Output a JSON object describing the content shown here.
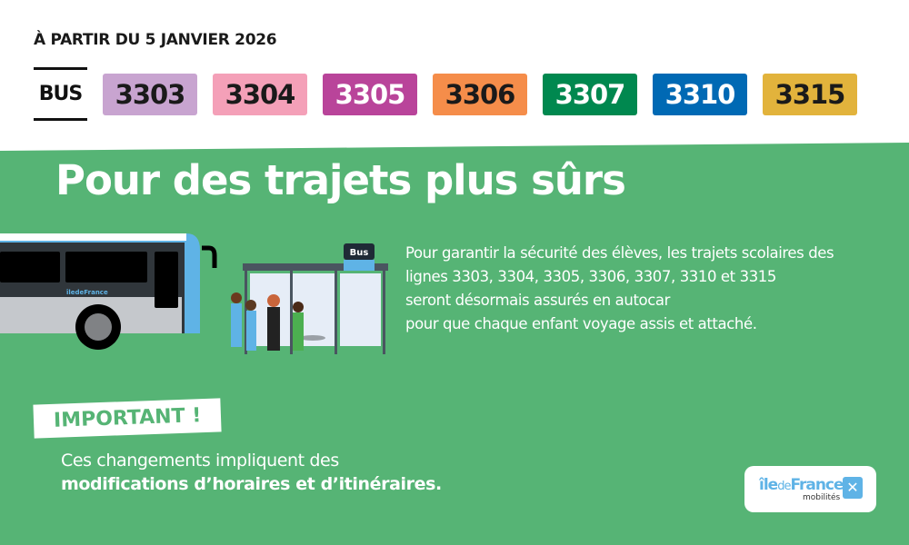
{
  "header": {
    "date": "À PARTIR DU 5 JANVIER 2026",
    "mode_label": "BUS"
  },
  "lines": [
    {
      "label": "3303",
      "bg": "#c8a4d0",
      "fg": "#1a1a1a"
    },
    {
      "label": "3304",
      "bg": "#f4a0b8",
      "fg": "#1a1a1a"
    },
    {
      "label": "3305",
      "bg": "#b9449a",
      "fg": "#ffffff"
    },
    {
      "label": "3306",
      "bg": "#f58d4a",
      "fg": "#1a1a1a"
    },
    {
      "label": "3307",
      "bg": "#00884f",
      "fg": "#ffffff"
    },
    {
      "label": "3310",
      "bg": "#0069b4",
      "fg": "#ffffff"
    },
    {
      "label": "3315",
      "bg": "#e2b33c",
      "fg": "#1a1a1a"
    }
  ],
  "main": {
    "title": "Pour des trajets plus sûrs",
    "description": [
      "Pour garantir la sécurité des élèves, les trajets scolaires des",
      "lignes 3303, 3304, 3305, 3306, 3307, 3310 et 3315",
      "seront désormais assurés en autocar",
      "pour que chaque enfant voyage assis et attaché."
    ],
    "bus_stop_sign": "Bus",
    "important_label": "IMPORTANT !",
    "note_line1": "Ces changements impliquent des",
    "note_line2": "modifications d’horaires et d’itinéraires."
  },
  "logo": {
    "brand_main": "île",
    "brand_de": "de",
    "brand_france": "France",
    "brand_sub": "mobilités",
    "bus_logo": "îledeFrance"
  },
  "colors": {
    "green": "#56b475",
    "accent_blue": "#5fb3e6"
  }
}
